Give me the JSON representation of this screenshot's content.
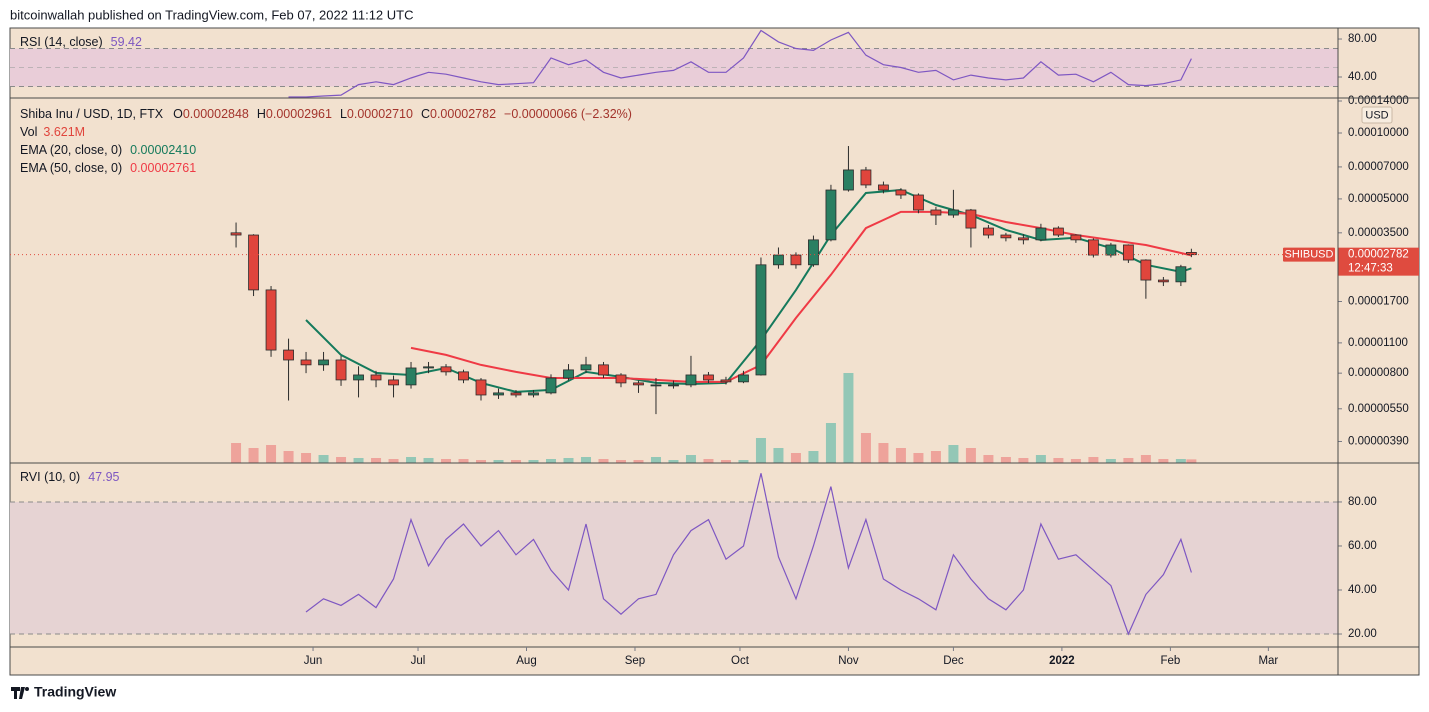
{
  "header": {
    "published": "bitcoinwallah published on TradingView.com, Feb 07, 2022 11:12 UTC"
  },
  "footer": {
    "brand": "TradingView"
  },
  "chart_data": [
    {
      "type": "line",
      "title": "RSI (14, close)",
      "color": "#7e57c2",
      "band": [
        30,
        70
      ],
      "midline": 50,
      "band_color": "#e9cdd8",
      "ylim": [
        17.9,
        91.6
      ],
      "yticks": [
        {
          "value": 80,
          "label": "80.00"
        },
        {
          "value": 40,
          "label": "40.00"
        }
      ],
      "x": [
        15,
        20,
        25,
        30,
        35,
        40,
        45,
        50,
        55,
        60,
        65,
        70,
        75,
        80,
        85,
        90,
        95,
        100,
        105,
        110,
        115,
        120,
        125,
        130,
        135,
        140,
        145,
        150,
        155,
        160,
        165,
        170,
        175,
        180,
        185,
        190,
        195,
        200,
        205,
        210,
        215,
        220,
        225,
        230,
        235,
        240,
        245,
        250,
        255,
        260,
        265,
        270,
        273
      ],
      "values": [
        19,
        19,
        20,
        21,
        32,
        35,
        32,
        39,
        45,
        43,
        39,
        35,
        32,
        33,
        34,
        60,
        53,
        58,
        45,
        39,
        42,
        45,
        47,
        56,
        45,
        45,
        60,
        89,
        77,
        70,
        68,
        79,
        87,
        63,
        53,
        50,
        45,
        47,
        37,
        42,
        39,
        37,
        39,
        56,
        42,
        43,
        35,
        45,
        32,
        31,
        33,
        37,
        59.42
      ]
    },
    {
      "type": "candlestick",
      "title": "Shiba Inu / USD, 1D, FTX",
      "log": true,
      "ohlc_legend": [
        {
          "label": "O",
          "value": "0.00002848"
        },
        {
          "label": "H",
          "value": "0.00002961"
        },
        {
          "label": "L",
          "value": "0.00002710"
        },
        {
          "label": "C",
          "value": "0.00002782"
        }
      ],
      "change": "−0.00000066 (−2.32%)",
      "volume_legend": {
        "name": "Vol",
        "value": "3.621M"
      },
      "currency": "USD",
      "symbol_tag": "SHIBUSD",
      "countdown": "12:47:33",
      "up_color": "#2a7f62",
      "down_color": "#e0453c",
      "volume_up_color": "#93c7b6",
      "volume_down_color": "#eea39b",
      "price_tag_color": "#df4b3f",
      "ylim": [
        3.11e-06,
        0.0001445
      ],
      "yticks": [
        {
          "value": 0.00014,
          "label": "0.00014000"
        },
        {
          "value": 0.0001,
          "label": "0.00010000"
        },
        {
          "value": 7e-05,
          "label": "0.00007000"
        },
        {
          "value": 5e-05,
          "label": "0.00005000"
        },
        {
          "value": 3.5e-05,
          "label": "0.00003500"
        },
        {
          "value": 1.7e-05,
          "label": "0.00001700"
        },
        {
          "value": 1.1e-05,
          "label": "0.00001100"
        },
        {
          "value": 8e-06,
          "label": "0.00000800"
        },
        {
          "value": 5.5e-06,
          "label": "0.00000550"
        },
        {
          "value": 3.9e-06,
          "label": "0.00000390"
        }
      ],
      "x": [
        0,
        5,
        10,
        15,
        20,
        25,
        30,
        35,
        40,
        45,
        50,
        55,
        60,
        65,
        70,
        75,
        80,
        85,
        90,
        95,
        100,
        105,
        110,
        115,
        120,
        125,
        130,
        135,
        140,
        145,
        150,
        155,
        160,
        165,
        170,
        175,
        180,
        185,
        190,
        195,
        200,
        205,
        210,
        215,
        220,
        225,
        230,
        235,
        240,
        245,
        250,
        255,
        260,
        265,
        270,
        273
      ],
      "open": [
        3.5e-05,
        3.42e-05,
        1.92e-05,
        1.02e-05,
        9.19e-06,
        8.73e-06,
        9.19e-06,
        7.45e-06,
        7.85e-06,
        7.45e-06,
        7.07e-06,
        8.45e-06,
        8.55e-06,
        8.11e-06,
        7.45e-06,
        6.36e-06,
        6.5e-06,
        6.36e-06,
        6.5e-06,
        7.6e-06,
        8.28e-06,
        8.73e-06,
        7.85e-06,
        7.22e-06,
        7.07e-06,
        7.07e-06,
        7.07e-06,
        7.85e-06,
        7.45e-06,
        7.3e-06,
        7.85e-06,
        2.5e-05,
        2.77e-05,
        2.5e-05,
        3.25e-05,
        5.49e-05,
        6.78e-05,
        5.79e-05,
        5.49e-05,
        5.21e-05,
        4.45e-05,
        4.22e-05,
        4.45e-05,
        3.68e-05,
        3.42e-05,
        3.32e-05,
        3.25e-05,
        3.68e-05,
        3.42e-05,
        3.25e-05,
        2.77e-05,
        3.08e-05,
        2.63e-05,
        2.13e-05,
        2.09e-05,
        2.848e-05
      ],
      "high": [
        3.9e-05,
        3.45e-05,
        2e-05,
        1.15e-05,
        1e-05,
        1e-05,
        9.6e-06,
        8.6e-06,
        8.2e-06,
        7.8e-06,
        9e-06,
        9e-06,
        8.8e-06,
        8.3e-06,
        7.6e-06,
        6.8e-06,
        6.7e-06,
        6.7e-06,
        7.9e-06,
        8.8e-06,
        9.5e-06,
        9e-06,
        8e-06,
        7.4e-06,
        7.6e-06,
        7.4e-06,
        9.6e-06,
        8.1e-06,
        7.7e-06,
        8.2e-06,
        2.7e-05,
        3e-05,
        2.85e-05,
        3.4e-05,
        5.8e-05,
        8.72e-05,
        7e-05,
        6e-05,
        5.6e-05,
        5.3e-05,
        4.6e-05,
        5.5e-05,
        4.5e-05,
        3.8e-05,
        3.5e-05,
        3.45e-05,
        3.85e-05,
        3.75e-05,
        3.45e-05,
        3.3e-05,
        3.15e-05,
        3.1e-05,
        2.65e-05,
        2.2e-05,
        2.5e-05,
        2.961e-05
      ],
      "low": [
        3e-05,
        1.8e-05,
        9.5e-06,
        6e-06,
        8e-06,
        8.2e-06,
        7e-06,
        6.2e-06,
        6.9e-06,
        6.2e-06,
        6.8e-06,
        8e-06,
        7.8e-06,
        7.2e-06,
        6e-06,
        6.1e-06,
        6.2e-06,
        6.2e-06,
        6.4e-06,
        7.4e-06,
        8e-06,
        7.6e-06,
        6.9e-06,
        6.5e-06,
        5.2e-06,
        6.8e-06,
        6.9e-06,
        7.2e-06,
        7.1e-06,
        7.2e-06,
        7.8e-06,
        2.4e-05,
        2.4e-05,
        2.45e-05,
        3.2e-05,
        5.4e-05,
        5.6e-05,
        5.3e-05,
        5e-05,
        4.3e-05,
        3.8e-05,
        4.1e-05,
        3e-05,
        3.3e-05,
        3.2e-05,
        3.1e-05,
        3.2e-05,
        3.35e-05,
        3.15e-05,
        2.7e-05,
        2.7e-05,
        2.55e-05,
        1.75e-05,
        2e-05,
        2e-05,
        2.71e-05
      ],
      "close": [
        3.42e-05,
        1.92e-05,
        1.02e-05,
        9.19e-06,
        8.73e-06,
        9.19e-06,
        7.45e-06,
        7.85e-06,
        7.45e-06,
        7.07e-06,
        8.45e-06,
        8.55e-06,
        8.11e-06,
        7.45e-06,
        6.36e-06,
        6.5e-06,
        6.36e-06,
        6.5e-06,
        7.6e-06,
        8.28e-06,
        8.73e-06,
        7.85e-06,
        7.22e-06,
        7.07e-06,
        7.07e-06,
        7.07e-06,
        7.85e-06,
        7.45e-06,
        7.3e-06,
        7.85e-06,
        2.5e-05,
        2.77e-05,
        2.5e-05,
        3.25e-05,
        5.49e-05,
        6.78e-05,
        5.79e-05,
        5.49e-05,
        5.21e-05,
        4.45e-05,
        4.22e-05,
        4.45e-05,
        3.68e-05,
        3.42e-05,
        3.32e-05,
        3.25e-05,
        3.68e-05,
        3.42e-05,
        3.25e-05,
        2.77e-05,
        3.08e-05,
        2.63e-05,
        2.13e-05,
        2.09e-05,
        2.45e-05,
        2.782e-05
      ],
      "volume": [
        20,
        15,
        18,
        12,
        10,
        8,
        6,
        5,
        5,
        4,
        6,
        5,
        4,
        4,
        3,
        3,
        3,
        3,
        4,
        5,
        6,
        4,
        3,
        3,
        6,
        3,
        8,
        4,
        3,
        3,
        25,
        15,
        10,
        12,
        40,
        90,
        30,
        20,
        15,
        10,
        12,
        18,
        15,
        8,
        6,
        5,
        8,
        5,
        4,
        6,
        4,
        5,
        8,
        4,
        4,
        3.621
      ],
      "series": [
        {
          "name": "EMA (20, close, 0)",
          "legend_value": "0.00002410",
          "color": "#157a5c",
          "x": [
            20,
            30,
            40,
            50,
            60,
            70,
            80,
            90,
            100,
            110,
            120,
            130,
            140,
            150,
            160,
            170,
            180,
            190,
            200,
            210,
            220,
            230,
            240,
            250,
            260,
            270,
            273
          ],
          "values": [
            1.4e-05,
            9.69e-06,
            8.02e-06,
            7.85e-06,
            8.45e-06,
            7.22e-06,
            6.57e-06,
            6.71e-06,
            8.11e-06,
            7.69e-06,
            7.22e-06,
            7.14e-06,
            7.22e-06,
            1.135e-05,
            1.92e-05,
            3.42e-05,
            5.32e-05,
            5.49e-05,
            4.69e-05,
            4.22e-05,
            3.61e-05,
            3.246e-05,
            3.32e-05,
            2.985e-05,
            2.5e-05,
            2.32e-05,
            2.41e-05
          ]
        },
        {
          "name": "EMA (50, close, 0)",
          "legend_value": "0.00002761",
          "color": "#ef3a45",
          "x": [
            50,
            60,
            70,
            80,
            90,
            100,
            110,
            120,
            130,
            140,
            150,
            160,
            170,
            180,
            190,
            200,
            210,
            220,
            230,
            240,
            250,
            260,
            270,
            273
          ],
          "values": [
            1.043e-05,
            9.69e-06,
            8.73e-06,
            8.11e-06,
            7.6e-06,
            7.6e-06,
            7.6e-06,
            7.45e-06,
            7.3e-06,
            7.3e-06,
            8.73e-06,
            1.43e-05,
            2.25e-05,
            3.68e-05,
            4.36e-05,
            4.36e-05,
            4.27e-05,
            3.92e-05,
            3.68e-05,
            3.42e-05,
            3.246e-05,
            3.08e-05,
            2.83e-05,
            2.761e-05
          ]
        }
      ]
    },
    {
      "type": "line",
      "title": "RVI (10, 0)",
      "color": "#7e57c2",
      "band": [
        20,
        80
      ],
      "band_color": "#e6d3d3",
      "ylim": [
        14.1,
        97.7
      ],
      "yticks": [
        {
          "value": 80,
          "label": "80.00"
        },
        {
          "value": 60,
          "label": "60.00"
        },
        {
          "value": 40,
          "label": "40.00"
        },
        {
          "value": 20,
          "label": "20.00"
        }
      ],
      "xlim": [
        -64.6,
        314.9
      ],
      "xticks": [
        {
          "value": 22,
          "label": "Jun"
        },
        {
          "value": 52,
          "label": "Jul"
        },
        {
          "value": 83,
          "label": "Aug"
        },
        {
          "value": 114,
          "label": "Sep"
        },
        {
          "value": 144,
          "label": "Oct"
        },
        {
          "value": 175,
          "label": "Nov"
        },
        {
          "value": 205,
          "label": "Dec"
        },
        {
          "value": 236,
          "label": "2022"
        },
        {
          "value": 267,
          "label": "Feb"
        },
        {
          "value": 295,
          "label": "Mar"
        }
      ],
      "x": [
        20,
        25,
        30,
        35,
        40,
        45,
        50,
        55,
        60,
        65,
        70,
        75,
        80,
        85,
        90,
        95,
        100,
        105,
        110,
        115,
        120,
        125,
        130,
        135,
        140,
        145,
        150,
        155,
        160,
        165,
        170,
        175,
        180,
        185,
        190,
        195,
        200,
        205,
        210,
        215,
        220,
        225,
        230,
        235,
        240,
        245,
        250,
        255,
        260,
        265,
        270,
        273
      ],
      "values": [
        30,
        36,
        33,
        38,
        32,
        45,
        72,
        51,
        63,
        70,
        60,
        67,
        56,
        63,
        49,
        40,
        70,
        36,
        29,
        36,
        38,
        56,
        67,
        72,
        54,
        60,
        93,
        55,
        36,
        60,
        87,
        50,
        72,
        45,
        40,
        36,
        31,
        56,
        45,
        36,
        31,
        40,
        70,
        54,
        56,
        49,
        42,
        20,
        38,
        47,
        63,
        47.95
      ]
    }
  ]
}
